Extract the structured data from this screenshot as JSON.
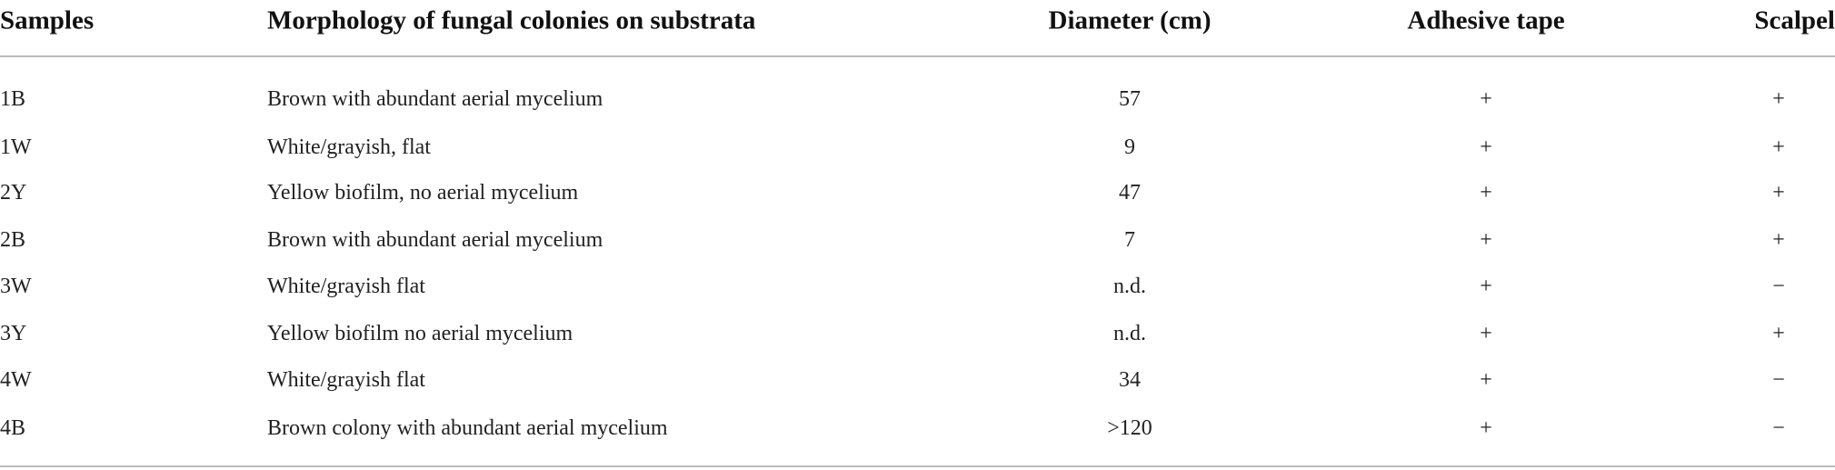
{
  "table": {
    "header": [
      "Samples",
      "Morphology of fungal colonies on substrata",
      "Diameter (cm)",
      "Adhesive tape",
      "Scalpel"
    ],
    "rows": [
      [
        "1B",
        "Brown with abundant aerial mycelium",
        "57",
        "+",
        "+"
      ],
      [
        "1W",
        "White/grayish, flat",
        "9",
        "+",
        "+"
      ],
      [
        "2Y",
        "Yellow biofilm, no aerial mycelium",
        "47",
        "+",
        "+"
      ],
      [
        "2B",
        "Brown with abundant aerial mycelium",
        "7",
        "+",
        "+"
      ],
      [
        "3W",
        "White/grayish flat",
        "n.d.",
        "+",
        "−"
      ],
      [
        "3Y",
        "Yellow biofilm no aerial mycelium",
        "n.d.",
        "+",
        "+"
      ],
      [
        "4W",
        "White/grayish flat",
        "34",
        "+",
        "−"
      ],
      [
        "4B",
        "Brown colony with abundant aerial mycelium",
        ">120",
        "+",
        "−"
      ]
    ]
  }
}
